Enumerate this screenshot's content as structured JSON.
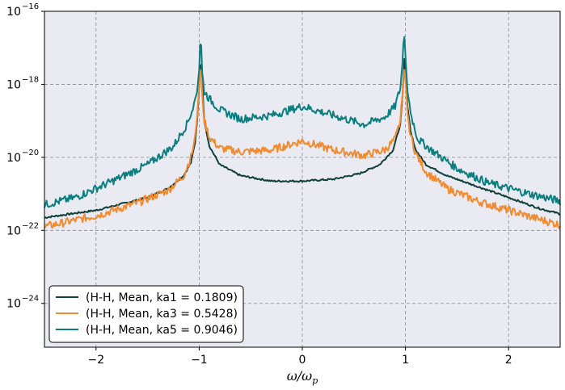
{
  "chart_data": {
    "type": "line",
    "title": "",
    "xlabel": "ω/ω",
    "xlabel_sub": "p",
    "ylabel": "",
    "yscale": "log",
    "xlim": [
      -2.5,
      2.5
    ],
    "ylim_exponent": [
      -25.2,
      -16
    ],
    "grid": true,
    "legend_position": "lower-left",
    "x_ticks": [
      {
        "v": -2,
        "label": "−2"
      },
      {
        "v": -1,
        "label": "−1"
      },
      {
        "v": 0,
        "label": "0"
      },
      {
        "v": 1,
        "label": "1"
      },
      {
        "v": 2,
        "label": "2"
      }
    ],
    "y_ticks": [
      {
        "exp": -16,
        "base": "10",
        "sup": "−16"
      },
      {
        "exp": -18,
        "base": "10",
        "sup": "−18"
      },
      {
        "exp": -20,
        "base": "10",
        "sup": "−20"
      },
      {
        "exp": -22,
        "base": "10",
        "sup": "−22"
      },
      {
        "exp": -24,
        "base": "10",
        "sup": "−24"
      }
    ],
    "series": [
      {
        "name": "(H-H, Mean, ka1 = 0.1809)",
        "color": "#10403a",
        "noise": 0.05,
        "points": [
          [
            -2.5,
            -21.65
          ],
          [
            -2.0,
            -21.45
          ],
          [
            -1.5,
            -21.1
          ],
          [
            -1.3,
            -20.85
          ],
          [
            -1.15,
            -20.5
          ],
          [
            -1.08,
            -20.15
          ],
          [
            -1.04,
            -19.6
          ],
          [
            -1.02,
            -19.0
          ],
          [
            -1.0,
            -18.1
          ],
          [
            -0.985,
            -17.2
          ],
          [
            -0.97,
            -18.0
          ],
          [
            -0.95,
            -19.0
          ],
          [
            -0.9,
            -19.7
          ],
          [
            -0.8,
            -20.2
          ],
          [
            -0.6,
            -20.5
          ],
          [
            -0.3,
            -20.65
          ],
          [
            0.0,
            -20.65
          ],
          [
            0.3,
            -20.6
          ],
          [
            0.55,
            -20.45
          ],
          [
            0.75,
            -20.2
          ],
          [
            0.88,
            -19.8
          ],
          [
            0.95,
            -19.1
          ],
          [
            0.975,
            -18.2
          ],
          [
            0.99,
            -17.3
          ],
          [
            1.0,
            -17.6
          ],
          [
            1.02,
            -18.6
          ],
          [
            1.05,
            -19.3
          ],
          [
            1.1,
            -19.8
          ],
          [
            1.2,
            -20.2
          ],
          [
            1.4,
            -20.5
          ],
          [
            1.7,
            -20.8
          ],
          [
            2.0,
            -21.1
          ],
          [
            2.3,
            -21.4
          ],
          [
            2.5,
            -21.55
          ]
        ]
      },
      {
        "name": "(H-H, Mean, ka3 = 0.5428)",
        "color": "#f28a2e",
        "noise": 0.22,
        "points": [
          [
            -2.5,
            -21.9
          ],
          [
            -2.0,
            -21.6
          ],
          [
            -1.6,
            -21.25
          ],
          [
            -1.3,
            -20.9
          ],
          [
            -1.15,
            -20.5
          ],
          [
            -1.08,
            -20.0
          ],
          [
            -1.04,
            -19.5
          ],
          [
            -1.02,
            -18.9
          ],
          [
            -1.0,
            -18.0
          ],
          [
            -0.985,
            -17.4
          ],
          [
            -0.97,
            -18.3
          ],
          [
            -0.95,
            -19.0
          ],
          [
            -0.9,
            -19.45
          ],
          [
            -0.8,
            -19.75
          ],
          [
            -0.6,
            -19.85
          ],
          [
            -0.3,
            -19.8
          ],
          [
            0.0,
            -19.55
          ],
          [
            0.3,
            -19.8
          ],
          [
            0.6,
            -19.95
          ],
          [
            0.8,
            -19.8
          ],
          [
            0.9,
            -19.5
          ],
          [
            0.95,
            -19.0
          ],
          [
            0.975,
            -18.2
          ],
          [
            0.99,
            -17.6
          ],
          [
            1.0,
            -17.8
          ],
          [
            1.02,
            -18.8
          ],
          [
            1.05,
            -19.4
          ],
          [
            1.1,
            -19.9
          ],
          [
            1.2,
            -20.4
          ],
          [
            1.4,
            -20.85
          ],
          [
            1.7,
            -21.2
          ],
          [
            2.0,
            -21.45
          ],
          [
            2.3,
            -21.7
          ],
          [
            2.5,
            -21.85
          ]
        ]
      },
      {
        "name": "(H-H, Mean, ka5 = 0.9046)",
        "color": "#0b7f80",
        "noise": 0.22,
        "points": [
          [
            -2.5,
            -21.3
          ],
          [
            -2.2,
            -21.1
          ],
          [
            -1.8,
            -20.6
          ],
          [
            -1.5,
            -20.2
          ],
          [
            -1.25,
            -19.7
          ],
          [
            -1.12,
            -19.1
          ],
          [
            -1.06,
            -18.65
          ],
          [
            -1.02,
            -18.2
          ],
          [
            -1.0,
            -17.6
          ],
          [
            -0.985,
            -16.55
          ],
          [
            -0.97,
            -17.7
          ],
          [
            -0.95,
            -18.2
          ],
          [
            -0.9,
            -18.4
          ],
          [
            -0.8,
            -18.7
          ],
          [
            -0.6,
            -18.95
          ],
          [
            -0.3,
            -18.85
          ],
          [
            0.0,
            -18.6
          ],
          [
            0.3,
            -18.85
          ],
          [
            0.6,
            -19.1
          ],
          [
            0.8,
            -18.9
          ],
          [
            0.9,
            -18.6
          ],
          [
            0.95,
            -18.1
          ],
          [
            0.975,
            -17.3
          ],
          [
            0.985,
            -16.45
          ],
          [
            1.0,
            -17.2
          ],
          [
            1.02,
            -18.2
          ],
          [
            1.06,
            -18.9
          ],
          [
            1.12,
            -19.5
          ],
          [
            1.25,
            -19.8
          ],
          [
            1.5,
            -20.3
          ],
          [
            1.8,
            -20.7
          ],
          [
            2.0,
            -20.85
          ],
          [
            2.2,
            -21.0
          ],
          [
            2.5,
            -21.2
          ]
        ]
      }
    ]
  }
}
